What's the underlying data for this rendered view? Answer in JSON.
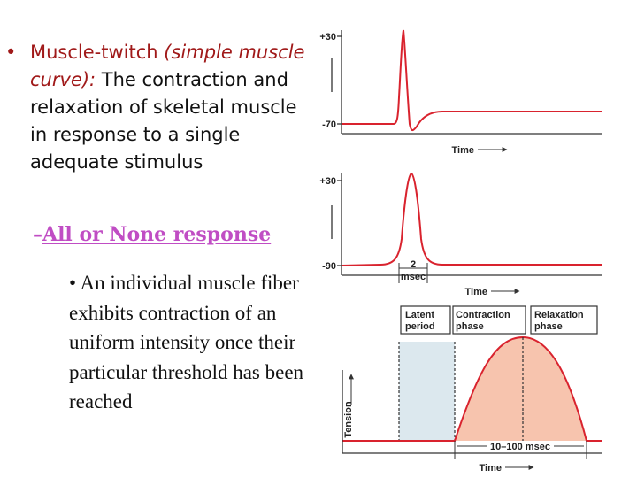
{
  "slide": {
    "bullet_main": {
      "dot": "•",
      "term": "Muscle-twitch",
      "paren": "(simple muscle curve):",
      "rest": "The contraction and relaxation of skeletal muscle in response to a single adequate stimulus"
    },
    "sub_dash": "–",
    "sub_text": "All or None response",
    "bullet_sub": {
      "dot": "•",
      "text": "An individual muscle fiber exhibits contraction of an uniform intensity once their particular threshold has been reached"
    }
  },
  "figure": {
    "colors": {
      "trace": "#d9232e",
      "axis": "#333333",
      "latent_fill": "#dce8ee",
      "twitch_fill": "#f7c4ae"
    },
    "panel_ap_muscle_cell": {
      "y_top_label": "+30",
      "y_bottom_label": "-70",
      "x_label": "Time"
    },
    "panel_ap_nerve": {
      "y_top_label": "+30",
      "y_bottom_label": "-90",
      "duration_top": "2",
      "duration_bottom": "msec",
      "x_label": "Time"
    },
    "panel_twitch": {
      "phase_latent_1": "Latent",
      "phase_latent_2": "period",
      "phase_contraction_1": "Contraction",
      "phase_contraction_2": "phase",
      "phase_relaxation_1": "Relaxation",
      "phase_relaxation_2": "phase",
      "y_label": "Tension",
      "duration": "10–100 msec",
      "x_label": "Time"
    }
  }
}
